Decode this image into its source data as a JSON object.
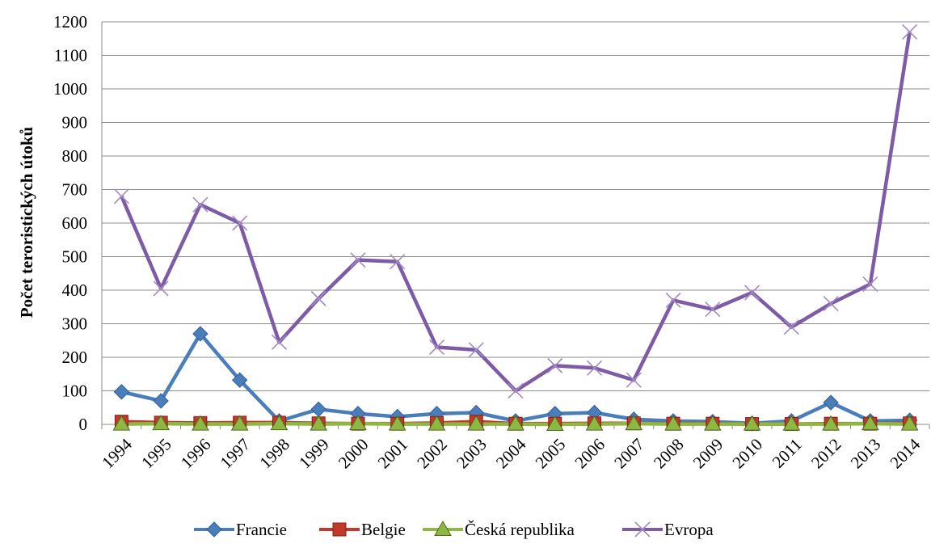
{
  "chart_data": {
    "type": "line",
    "title": "",
    "xlabel": "",
    "ylabel": "Počet teroristických útoků",
    "ylim": [
      0,
      1200
    ],
    "yticks": [
      0,
      100,
      200,
      300,
      400,
      500,
      600,
      700,
      800,
      900,
      1000,
      1100,
      1200
    ],
    "grid": "horizontal",
    "legend_position": "bottom",
    "categories": [
      "1994",
      "1995",
      "1996",
      "1997",
      "1998",
      "1999",
      "2000",
      "2001",
      "2002",
      "2003",
      "2004",
      "2005",
      "2006",
      "2007",
      "2008",
      "2009",
      "2010",
      "2011",
      "2012",
      "2013",
      "2014"
    ],
    "series": [
      {
        "name": "Francie",
        "color": "#4a7ebb",
        "marker": "diamond",
        "values": [
          97,
          70,
          270,
          132,
          10,
          45,
          32,
          23,
          32,
          35,
          10,
          32,
          35,
          15,
          10,
          8,
          3,
          10,
          65,
          10,
          12
        ]
      },
      {
        "name": "Belgie",
        "color": "#c0392b",
        "marker": "square",
        "values": [
          8,
          5,
          4,
          5,
          5,
          3,
          2,
          2,
          4,
          8,
          2,
          2,
          3,
          3,
          2,
          2,
          1,
          1,
          2,
          2,
          3
        ]
      },
      {
        "name": "Česká republika",
        "color": "#8fb842",
        "marker": "triangle",
        "values": [
          1,
          2,
          1,
          1,
          2,
          1,
          2,
          1,
          1,
          1,
          1,
          0,
          1,
          2,
          1,
          1,
          1,
          1,
          1,
          2,
          1
        ]
      },
      {
        "name": "Evropa",
        "color": "#7d5ba6",
        "marker": "cross",
        "values": [
          680,
          405,
          655,
          600,
          245,
          375,
          490,
          485,
          230,
          222,
          100,
          175,
          168,
          132,
          370,
          343,
          393,
          290,
          360,
          418,
          1170
        ]
      }
    ]
  }
}
